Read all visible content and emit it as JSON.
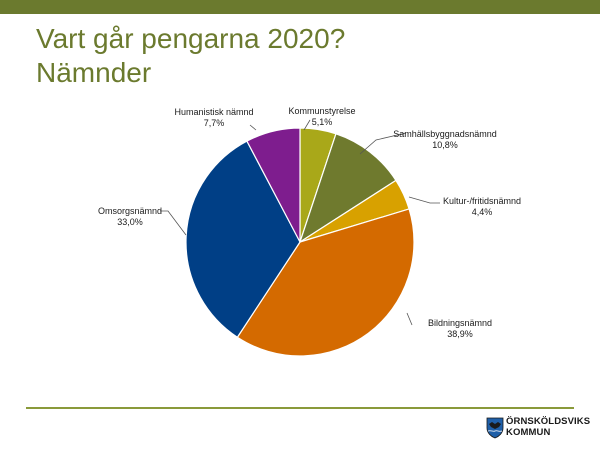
{
  "header": {
    "title_line1": "Vart går pengarna 2020?",
    "title_line2": "Nämnder"
  },
  "logo": {
    "line1": "ÖRNSKÖLDSVIKS",
    "line2": "KOMMUN"
  },
  "colors": {
    "accent": "#6b7a2e",
    "rule": "#8a9a3a"
  },
  "chart_data": {
    "type": "pie",
    "title": "",
    "start_angle_deg": 0,
    "direction": "clockwise",
    "slices": [
      {
        "label": "Kommunstyrelse",
        "value": 5.1,
        "display": "5,1%",
        "color": "#a9a819"
      },
      {
        "label": "Samhällsbyggnadsnämnd",
        "value": 10.8,
        "display": "10,8%",
        "color": "#6f7a2e"
      },
      {
        "label": "Kultur-/fritidsnämnd",
        "value": 4.4,
        "display": "4,4%",
        "color": "#d8a100"
      },
      {
        "label": "Bildningsnämnd",
        "value": 38.9,
        "display": "38,9%",
        "color": "#d46a00"
      },
      {
        "label": "Omsorgsnämnd",
        "value": 33.0,
        "display": "33,0%",
        "color": "#003f86"
      },
      {
        "label": "Humanistisk nämnd",
        "value": 7.7,
        "display": "7,7%",
        "color": "#7e1d8e"
      }
    ]
  }
}
